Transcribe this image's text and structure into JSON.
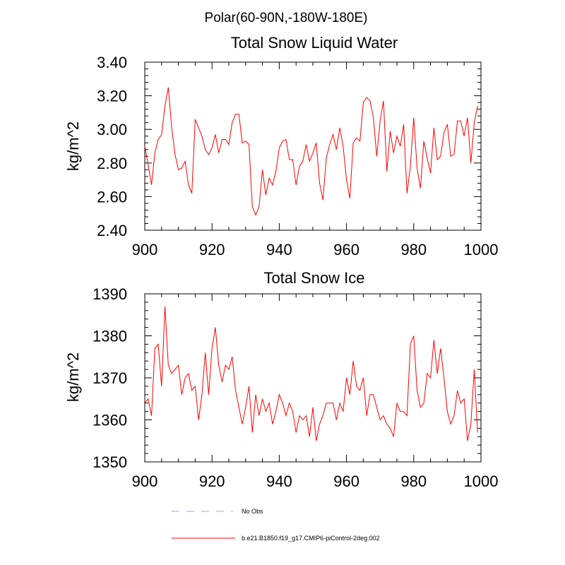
{
  "suptitle": "Polar(60-90N,-180W-180E)",
  "legend": [
    {
      "label": "No Obs",
      "color": "#a0a0e0",
      "style": "dashed"
    },
    {
      "label": "b.e21.B1850.f19_g17.CMIP6-piControl-2deg.002",
      "color": "#ff0000",
      "style": "solid"
    }
  ],
  "chart_data": [
    {
      "type": "line",
      "title": "Total Snow Liquid Water",
      "xlabel": "",
      "ylabel": "kg/m^2",
      "xlim": [
        900,
        1000
      ],
      "ylim": [
        2.4,
        3.4
      ],
      "xticks": [
        900,
        920,
        940,
        960,
        980,
        1000
      ],
      "xtick_labels": [
        "900",
        "920",
        "940",
        "960",
        "980",
        "1000"
      ],
      "yticks": [
        2.4,
        2.6,
        2.8,
        3.0,
        3.2,
        3.4
      ],
      "ytick_labels": [
        "2.40",
        "2.60",
        "2.80",
        "3.00",
        "3.20",
        "3.40"
      ],
      "series": [
        {
          "name": "b.e21.B1850.f19_g17.CMIP6-piControl-2deg.002",
          "x_start": 900,
          "values": [
            2.9,
            2.79,
            2.67,
            2.86,
            2.94,
            2.97,
            3.14,
            3.25,
            3.01,
            2.85,
            2.76,
            2.77,
            2.81,
            2.67,
            2.62,
            3.06,
            3.01,
            2.96,
            2.88,
            2.85,
            2.89,
            2.97,
            2.86,
            2.94,
            2.94,
            2.91,
            3.04,
            3.09,
            3.09,
            2.92,
            2.93,
            2.91,
            2.54,
            2.49,
            2.54,
            2.76,
            2.61,
            2.71,
            2.67,
            2.75,
            2.89,
            2.93,
            2.94,
            2.82,
            2.82,
            2.67,
            2.78,
            2.81,
            2.91,
            2.81,
            2.86,
            2.92,
            2.68,
            2.58,
            2.83,
            2.91,
            2.97,
            2.88,
            3.01,
            2.9,
            2.7,
            2.59,
            2.92,
            2.95,
            2.93,
            3.16,
            3.19,
            3.17,
            3.07,
            2.84,
            3.05,
            3.17,
            2.75,
            2.99,
            2.86,
            2.96,
            2.9,
            3.03,
            2.62,
            2.78,
            3.07,
            2.77,
            2.65,
            2.93,
            2.83,
            2.74,
            3.01,
            2.82,
            2.84,
            2.98,
            3.03,
            2.84,
            2.85,
            3.05,
            3.05,
            2.96,
            3.07,
            2.8,
            3.04,
            3.14
          ]
        }
      ]
    },
    {
      "type": "line",
      "title": "Total Snow Ice",
      "xlabel": "",
      "ylabel": "kg/m^2",
      "xlim": [
        900,
        1000
      ],
      "ylim": [
        1350,
        1390
      ],
      "xticks": [
        900,
        920,
        940,
        960,
        980,
        1000
      ],
      "xtick_labels": [
        "900",
        "920",
        "940",
        "960",
        "980",
        "1000"
      ],
      "yticks": [
        1350,
        1360,
        1370,
        1380,
        1390
      ],
      "ytick_labels": [
        "1350",
        "1360",
        "1370",
        "1380",
        "1390"
      ],
      "series": [
        {
          "name": "b.e21.B1850.f19_g17.CMIP6-piControl-2deg.002",
          "x_start": 900,
          "values": [
            1364,
            1365,
            1361,
            1377,
            1378,
            1368,
            1387,
            1373,
            1371,
            1372,
            1373,
            1366,
            1370,
            1371,
            1367,
            1368,
            1360,
            1366,
            1376,
            1366,
            1377,
            1382,
            1373,
            1369,
            1373,
            1372,
            1375,
            1367,
            1363,
            1359,
            1363,
            1368,
            1357,
            1366,
            1361,
            1365,
            1362,
            1364,
            1359,
            1362,
            1366,
            1364,
            1361,
            1364,
            1362,
            1357,
            1361,
            1360,
            1361,
            1356,
            1363,
            1355,
            1359,
            1361,
            1364,
            1364,
            1364,
            1360,
            1364,
            1362,
            1370,
            1366,
            1374,
            1368,
            1367,
            1370,
            1361,
            1366,
            1366,
            1363,
            1360,
            1361,
            1359,
            1358,
            1356,
            1364,
            1362,
            1362,
            1361,
            1378,
            1380,
            1367,
            1363,
            1364,
            1371,
            1370,
            1379,
            1371,
            1377,
            1370,
            1362,
            1359,
            1361,
            1367,
            1364,
            1365,
            1355,
            1359,
            1372,
            1357
          ]
        }
      ]
    }
  ]
}
